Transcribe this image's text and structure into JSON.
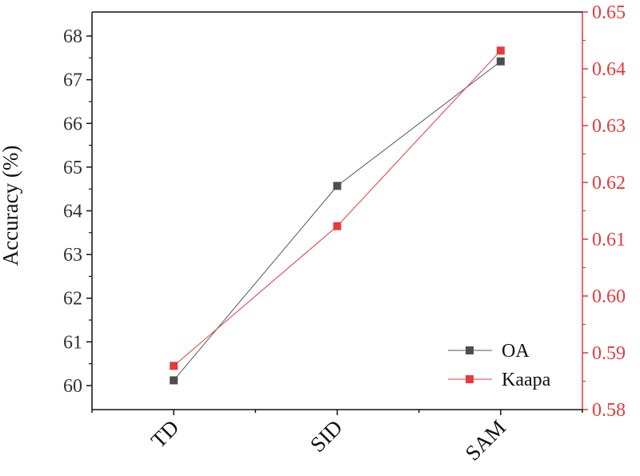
{
  "chart_data": {
    "type": "line",
    "categories": [
      "TD",
      "SID",
      "SAM"
    ],
    "ylabel": "Accuracy (%)",
    "ylabel_right": "",
    "ylim": [
      59.45,
      68.55
    ],
    "yticks": [
      "60",
      "61",
      "62",
      "63",
      "64",
      "65",
      "66",
      "67",
      "68"
    ],
    "ylim_right": [
      0.58,
      0.65
    ],
    "yticks_right": [
      "0.58",
      "0.59",
      "0.60",
      "0.61",
      "0.62",
      "0.63",
      "0.64",
      "0.65"
    ],
    "grid": false,
    "legend_position": "bottom-right",
    "series": [
      {
        "name": "OA",
        "axis": "left",
        "values": [
          60.12,
          64.57,
          67.42
        ],
        "color": "#4d4d4d",
        "line_color": "#555555"
      },
      {
        "name": "Kaapa",
        "axis": "right",
        "values": [
          0.5877,
          0.6123,
          0.6432
        ],
        "color": "#e8383d",
        "line_color": "#e8383d"
      }
    ]
  }
}
